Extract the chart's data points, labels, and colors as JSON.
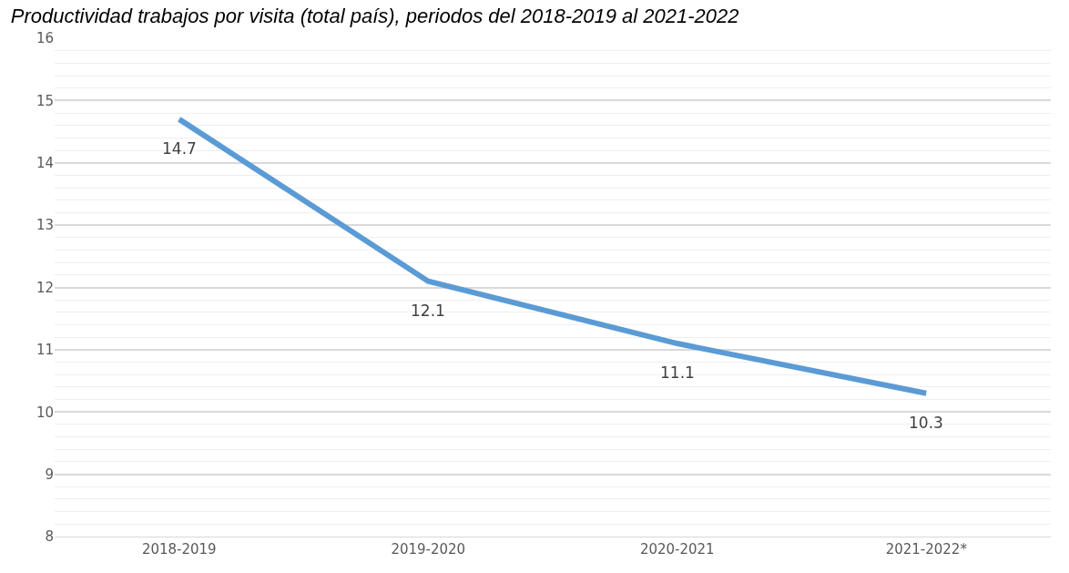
{
  "chart_data": {
    "type": "line",
    "title": "Productividad trabajos por visita (total país), periodos del 2018-2019 al 2021-2022",
    "categories": [
      "2018-2019",
      "2019-2020",
      "2020-2021",
      "2021-2022*"
    ],
    "series": [
      {
        "color": "#5b9bd5",
        "values": [
          14.7,
          12.1,
          11.1,
          10.3
        ]
      }
    ],
    "ylim": [
      8,
      16
    ],
    "yticks": [
      8,
      9,
      10,
      11,
      12,
      13,
      14,
      15,
      16
    ],
    "grid": "y",
    "data_labels": true,
    "marker": "none",
    "line_style": "solid"
  }
}
